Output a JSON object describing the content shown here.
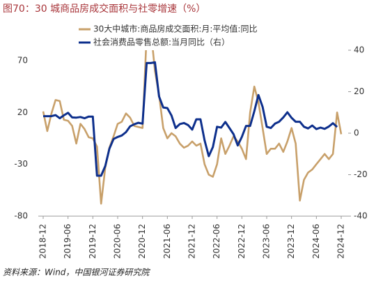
{
  "chart_data": {
    "type": "line",
    "title": "图70：30 城商品房成交面积与社零增速（%）",
    "source": "资料来源：Wind，中国银河证券研究院",
    "categories": [
      "2018-12",
      null,
      null,
      null,
      null,
      null,
      "2019-06",
      null,
      null,
      null,
      null,
      null,
      "2019-12",
      null,
      null,
      null,
      null,
      null,
      "2020-06",
      null,
      null,
      null,
      null,
      null,
      "2020-12",
      null,
      null,
      null,
      null,
      null,
      "2021-06",
      null,
      null,
      null,
      null,
      null,
      "2021-12",
      null,
      null,
      null,
      null,
      null,
      "2022-06",
      null,
      null,
      null,
      null,
      null,
      "2022-12",
      null,
      null,
      null,
      null,
      null,
      "2023-06",
      null,
      null,
      null,
      null,
      null,
      "2023-12",
      null,
      null,
      null,
      null,
      null,
      "2024-06",
      null,
      null,
      null,
      null,
      null,
      "2024-12"
    ],
    "series": [
      {
        "name": "30大中城市:商品房成交面积:月:平均值:同比",
        "color": "#c8a06a",
        "axis": "y",
        "values": [
          21,
          2,
          19,
          32,
          31,
          13,
          12,
          7,
          -10,
          9,
          4,
          -4,
          -5,
          -13,
          -68,
          -33,
          -14,
          -3,
          9,
          11,
          19,
          15,
          7,
          6,
          5,
          95,
          100,
          60,
          37,
          5,
          -5,
          0,
          -3,
          -10,
          -14,
          -12,
          -8,
          -12,
          -10,
          -30,
          -40,
          -42,
          -30,
          -5,
          -20,
          -12,
          -3,
          -8,
          -15,
          -25,
          20,
          45,
          30,
          5,
          -20,
          -15,
          -15,
          -10,
          -18,
          -8,
          5,
          -10,
          -65,
          -45,
          -38,
          -35,
          -30,
          -25,
          -20,
          -25,
          -20,
          20,
          -1
        ]
      },
      {
        "name": "社会消费品零售总额:当月同比（右）",
        "color": "#0d2f8c",
        "axis": "y2",
        "values": [
          8.2,
          8.2,
          8.2,
          8.7,
          7.2,
          8.6,
          9.8,
          7.6,
          7.5,
          7.8,
          7.2,
          8.0,
          8.0,
          -20.5,
          -20.5,
          -15.8,
          -7.5,
          -2.8,
          -1.8,
          -1.1,
          0.5,
          3.3,
          4.3,
          5.0,
          4.6,
          33.8,
          33.8,
          34.2,
          17.7,
          12.4,
          12.1,
          8.5,
          2.5,
          4.4,
          4.9,
          3.9,
          1.7,
          6.7,
          6.7,
          -3.5,
          -11.1,
          -6.7,
          3.1,
          2.7,
          5.4,
          2.5,
          -0.5,
          -5.9,
          -1.8,
          3.5,
          3.5,
          10.6,
          18.4,
          12.7,
          3.1,
          2.5,
          4.6,
          5.5,
          7.6,
          10.1,
          7.4,
          5.5,
          5.5,
          3.1,
          2.3,
          3.7,
          2.0,
          2.7,
          2.1,
          3.2,
          4.8,
          3.0,
          null
        ]
      }
    ],
    "ylim": [
      -80,
      80
    ],
    "yticks": [
      -80,
      -30,
      20,
      70
    ],
    "y2lim": [
      -40,
      40
    ],
    "y2ticks": [
      -40,
      -20,
      0,
      20,
      40
    ],
    "legend": "top"
  }
}
